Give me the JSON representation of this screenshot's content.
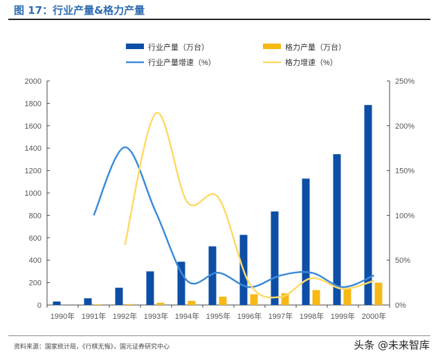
{
  "title": "图 17：行业产量&格力产量",
  "source": "资料来源：国家统计局，《行棋无悔》，国元证券研究中心",
  "watermark": "头条 @未来智库",
  "chart_data": {
    "type": "bar+line",
    "categories": [
      "1990年",
      "1991年",
      "1992年",
      "1993年",
      "1994年",
      "1995年",
      "1996年",
      "1997年",
      "1998年",
      "1999年",
      "2000年"
    ],
    "series": [
      {
        "name": "行业产量（万台）",
        "type": "bar",
        "axis": "left",
        "color": "#0d4ea6",
        "values": [
          31,
          60,
          154,
          300,
          386,
          523,
          626,
          835,
          1128,
          1346,
          1785
        ]
      },
      {
        "name": "格力产量（万台）",
        "type": "bar",
        "axis": "left",
        "color": "#f7b916",
        "values": [
          null,
          6,
          8,
          20,
          37,
          74,
          96,
          105,
          133,
          144,
          199
        ]
      },
      {
        "name": "行业产量增速（%）",
        "type": "line",
        "axis": "right",
        "color": "#3c8ad8",
        "values": [
          null,
          100,
          176,
          103,
          27,
          36,
          20,
          33,
          36,
          20,
          33
        ]
      },
      {
        "name": "格力增速（%）",
        "type": "line",
        "axis": "right",
        "color": "#ffd966",
        "values": [
          null,
          null,
          67,
          214,
          115,
          120,
          24,
          9,
          30,
          18,
          27
        ]
      }
    ],
    "left_axis": {
      "min": 0,
      "max": 2000,
      "ticks": [
        "0",
        "200",
        "400",
        "600",
        "800",
        "1000",
        "1200",
        "1400",
        "1600",
        "1800",
        "2000"
      ]
    },
    "right_axis": {
      "min": 0,
      "max": 250,
      "ticks": [
        "0%",
        "50%",
        "100%",
        "150%",
        "200%",
        "250%"
      ]
    },
    "legend": "top-center",
    "grid": false
  }
}
